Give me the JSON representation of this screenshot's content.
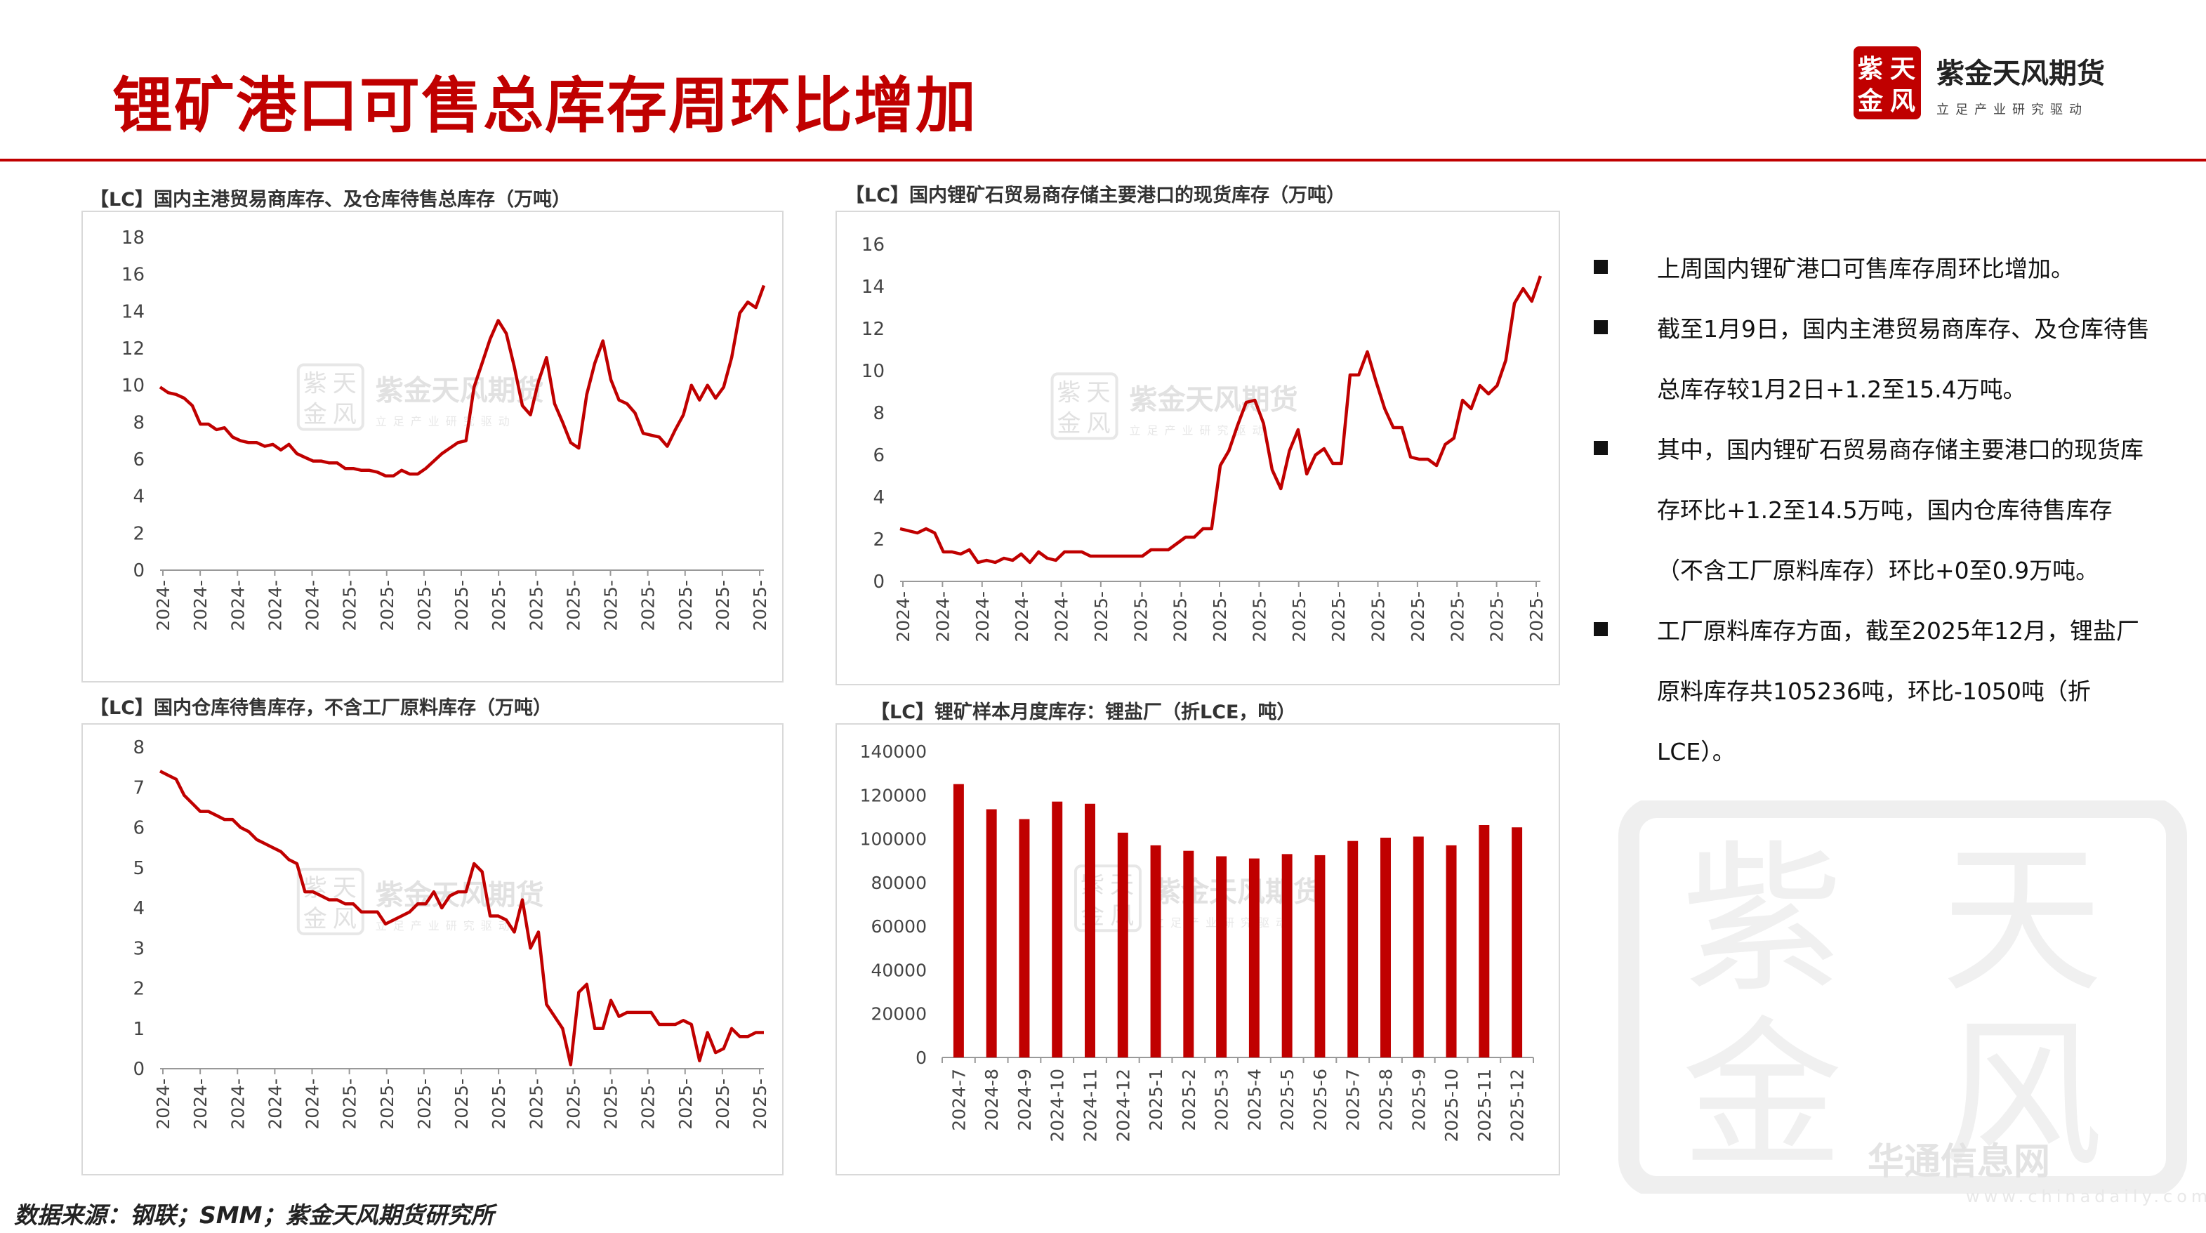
{
  "header": {
    "title": "锂矿港口可售总库存周环比增加",
    "brand_name": "紫金天风期货",
    "brand_slogan": "立足产业研究驱动",
    "logo_text": "紫天金风",
    "accent_color": "#c00000"
  },
  "watermark": {
    "name": "紫金天风期货",
    "slogan": "立足产业研究驱动",
    "seal": "紫天金风"
  },
  "bottom_mark": {
    "text": "华通信息网",
    "sub": "www.chinadaily.com.cn"
  },
  "source": "数据来源：钢联；SMM；紫金天风期货研究所",
  "bullets": [
    "上周国内锂矿港口可售库存周环比增加。",
    "截至1月9日，国内主港贸易商库存、及仓库待售总库存较1月2日+1.2至15.4万吨。",
    "其中，国内锂矿石贸易商存储主要港口的现货库存环比+1.2至14.5万吨，国内仓库待售库存（不含工厂原料库存）环比+0至0.9万吨。",
    "工厂原料库存方面，截至2025年12月，锂盐厂原料库存共105236吨，环比-1050吨（折LCE）。"
  ],
  "chart_data": [
    {
      "id": "c1",
      "type": "line",
      "title": "【LC】国内主港贸易商库存、及仓库待售总库存（万吨）",
      "ylim": [
        0,
        18
      ],
      "yticks": [
        0,
        2,
        4,
        6,
        8,
        10,
        12,
        14,
        16,
        18
      ],
      "xticks": [
        "2024-",
        "2024-",
        "2024-",
        "2024-",
        "2024-",
        "2025-",
        "2025-",
        "2025-",
        "2025-",
        "2025-",
        "2025-",
        "2025-",
        "2025-",
        "2025-",
        "2025-",
        "2025-",
        "2025-"
      ],
      "color": "#c00000",
      "values": [
        9.9,
        9.6,
        9.5,
        9.3,
        8.9,
        7.9,
        7.9,
        7.6,
        7.7,
        7.2,
        7.0,
        6.9,
        6.9,
        6.7,
        6.8,
        6.5,
        6.8,
        6.3,
        6.1,
        5.9,
        5.9,
        5.8,
        5.8,
        5.5,
        5.5,
        5.4,
        5.4,
        5.3,
        5.1,
        5.1,
        5.4,
        5.2,
        5.2,
        5.5,
        5.9,
        6.3,
        6.6,
        6.9,
        7.0,
        9.9,
        11.2,
        12.5,
        13.5,
        12.8,
        11.0,
        8.9,
        8.4,
        10.2,
        11.5,
        9.0,
        8.0,
        6.9,
        6.6,
        9.5,
        11.2,
        12.4,
        10.3,
        9.2,
        9.0,
        8.5,
        7.4,
        7.3,
        7.2,
        6.7,
        7.6,
        8.4,
        10.0,
        9.2,
        10.0,
        9.3,
        9.9,
        11.5,
        13.9,
        14.5,
        14.2,
        15.4
      ]
    },
    {
      "id": "c2",
      "type": "line",
      "title": "【LC】国内锂矿石贸易商存储主要港口的现货库存（万吨）",
      "ylim": [
        0,
        16
      ],
      "yticks": [
        0,
        2,
        4,
        6,
        8,
        10,
        12,
        14,
        16
      ],
      "xticks": [
        "2024-",
        "2024-",
        "2024-",
        "2024-",
        "2024-",
        "2025-",
        "2025-",
        "2025-",
        "2025-",
        "2025-",
        "2025-",
        "2025-",
        "2025-",
        "2025-",
        "2025-",
        "2025-",
        "2025-"
      ],
      "color": "#c00000",
      "values": [
        2.5,
        2.4,
        2.3,
        2.5,
        2.3,
        1.4,
        1.4,
        1.3,
        1.5,
        0.9,
        1.0,
        0.9,
        1.1,
        1.0,
        1.3,
        0.9,
        1.4,
        1.1,
        1.0,
        1.4,
        1.4,
        1.4,
        1.2,
        1.2,
        1.2,
        1.2,
        1.2,
        1.2,
        1.2,
        1.5,
        1.5,
        1.5,
        1.8,
        2.1,
        2.1,
        2.5,
        2.5,
        5.5,
        6.2,
        7.4,
        8.5,
        8.6,
        7.5,
        5.3,
        4.4,
        6.2,
        7.2,
        5.1,
        6.0,
        6.3,
        5.6,
        5.6,
        9.8,
        9.8,
        10.9,
        9.5,
        8.2,
        7.3,
        7.3,
        5.9,
        5.8,
        5.8,
        5.5,
        6.5,
        6.8,
        8.6,
        8.2,
        9.3,
        8.9,
        9.3,
        10.5,
        13.2,
        13.9,
        13.3,
        14.5
      ]
    },
    {
      "id": "c3",
      "type": "line",
      "title": "【LC】国内仓库待售库存，不含工厂原料库存（万吨）",
      "ylim": [
        0,
        8
      ],
      "yticks": [
        0,
        1,
        2,
        3,
        4,
        5,
        6,
        7,
        8
      ],
      "xticks": [
        "2024-",
        "2024-",
        "2024-",
        "2024-",
        "2024-",
        "2025-",
        "2025-",
        "2025-",
        "2025-",
        "2025-",
        "2025-",
        "2025-",
        "2025-",
        "2025-",
        "2025-",
        "2025-",
        "2025-"
      ],
      "color": "#c00000",
      "values": [
        7.4,
        7.3,
        7.2,
        6.8,
        6.6,
        6.4,
        6.4,
        6.3,
        6.2,
        6.2,
        6.0,
        5.9,
        5.7,
        5.6,
        5.5,
        5.4,
        5.2,
        5.1,
        4.4,
        4.4,
        4.3,
        4.2,
        4.2,
        4.1,
        4.1,
        3.9,
        3.9,
        3.9,
        3.6,
        3.7,
        3.8,
        3.9,
        4.1,
        4.1,
        4.4,
        4.0,
        4.3,
        4.4,
        4.4,
        5.1,
        4.9,
        3.8,
        3.8,
        3.7,
        3.4,
        4.2,
        3.0,
        3.4,
        1.6,
        1.3,
        1.0,
        0.1,
        1.9,
        2.1,
        1.0,
        1.0,
        1.7,
        1.3,
        1.4,
        1.4,
        1.4,
        1.4,
        1.1,
        1.1,
        1.1,
        1.2,
        1.1,
        0.2,
        0.9,
        0.4,
        0.5,
        1.0,
        0.8,
        0.8,
        0.9,
        0.9
      ]
    },
    {
      "id": "c4",
      "type": "bar",
      "title": "【LC】锂矿样本月度库存：锂盐厂（折LCE，吨）",
      "ylim": [
        0,
        140000
      ],
      "yticks": [
        0,
        20000,
        40000,
        60000,
        80000,
        100000,
        120000,
        140000
      ],
      "color": "#c00000",
      "categories": [
        "2024-7",
        "2024-8",
        "2024-9",
        "2024-10",
        "2024-11",
        "2024-12",
        "2025-1",
        "2025-2",
        "2025-3",
        "2025-4",
        "2025-5",
        "2025-6",
        "2025-7",
        "2025-8",
        "2025-9",
        "2025-10",
        "2025-11",
        "2025-12"
      ],
      "values": [
        125000,
        113500,
        109000,
        117000,
        116000,
        102800,
        97000,
        94500,
        92000,
        91000,
        93000,
        92500,
        99000,
        100500,
        101000,
        97000,
        106286,
        105236
      ]
    }
  ]
}
